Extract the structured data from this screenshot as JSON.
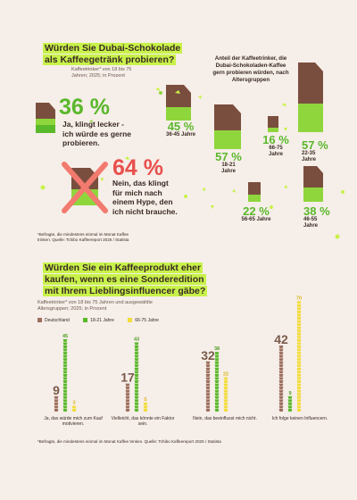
{
  "section1": {
    "title_line1": "Würden Sie Dubai-Schokolade",
    "title_line2": "als Kaffeegetränk probieren?",
    "subtitle_line1": "Kaffeetrinker* von 18 bis 75",
    "subtitle_line2": "Jahren; 2025; in Prozent",
    "yes_pct": "36 %",
    "yes_text": [
      "Ja, klingt lecker -",
      "ich würde es gerne",
      "probieren."
    ],
    "no_pct": "64 %",
    "no_text": [
      "Nein, das klingt",
      "für mich nach",
      "einem Hype, den",
      "ich nicht brauche."
    ],
    "right_title": [
      "Anteil der Kaffeetrinker, die",
      "Dubai-Schokoladen-Kaffee",
      "gern probieren würden, nach",
      "Altersgruppen"
    ],
    "groups": [
      {
        "pct": "45 %",
        "label": "36-45 Jahre"
      },
      {
        "pct": "57 %",
        "label": "18-21 Jahre"
      },
      {
        "pct": "16 %",
        "label": "66-75 Jahre"
      },
      {
        "pct": "57 %",
        "label": "22-35 Jahre"
      },
      {
        "pct": "22 %",
        "label": "56-65 Jahre"
      },
      {
        "pct": "38 %",
        "label": "46-55 Jahre"
      }
    ],
    "note": [
      "*Befragte, die mindestens einmal im Monat Kaffee",
      "trinken. Quelle: Tchibo Kaffeereport 2025 / Statista"
    ]
  },
  "section2": {
    "title_line1": "Würden Sie ein Kaffeeprodukt eher",
    "title_line2": "kaufen, wenn es eine Sonderedition",
    "title_line3": "mit Ihrem Lieblingsinfluencer gäbe?",
    "subtitle_line1": "Kaffeetrinker* von 18 bis 75 Jahren und ausgewählte",
    "subtitle_line2": "Altersgruppen; 2025; in Prozent",
    "note": "*Befragte, die mindestens einmal im Monat Kaffee trinken. Quelle: Tchibo Kaffeereport 2025 / Statista"
  },
  "colors": {
    "brown": "#9c6e5e",
    "green": "#5ab82b",
    "yellow": "#f2dc3c",
    "lime": "#c8f24a",
    "red": "#e8504e"
  },
  "chart_data": [
    {
      "type": "bar",
      "title": "Würden Sie Dubai-Schokolade als Kaffeegetränk probieren?",
      "categories": [
        "Ja, klingt lecker - ich würde es gerne probieren.",
        "Nein, das klingt für mich nach einem Hype, den ich nicht brauche."
      ],
      "values": [
        36,
        64
      ],
      "unit": "%"
    },
    {
      "type": "bar",
      "title": "Anteil der Kaffeetrinker, die Dubai-Schokoladen-Kaffee gern probieren würden, nach Altersgruppen",
      "categories": [
        "18-21 Jahre",
        "22-35 Jahre",
        "36-45 Jahre",
        "46-55 Jahre",
        "56-65 Jahre",
        "66-75 Jahre"
      ],
      "values": [
        57,
        57,
        45,
        38,
        22,
        16
      ],
      "unit": "%"
    },
    {
      "type": "bar",
      "title": "Würden Sie ein Kaffeeprodukt eher kaufen, wenn es eine Sonderedition mit Ihrem Lieblingsinfluencer gäbe?",
      "categories": [
        "Ja, das würde mich zum Kauf motivieren.",
        "Vielleicht, das könnte ein Faktor sein.",
        "Nein, das beeinflusst mich nicht.",
        "Ich folge keinen Influencern."
      ],
      "series": [
        {
          "name": "Deutschland",
          "values": [
            9,
            17,
            32,
            42
          ]
        },
        {
          "name": "18-21 Jahre",
          "values": [
            45,
            43,
            38,
            9
          ]
        },
        {
          "name": "66-75 Jahre",
          "values": [
            3,
            5,
            22,
            70
          ]
        }
      ],
      "unit": "%",
      "legend": "top-left"
    }
  ]
}
